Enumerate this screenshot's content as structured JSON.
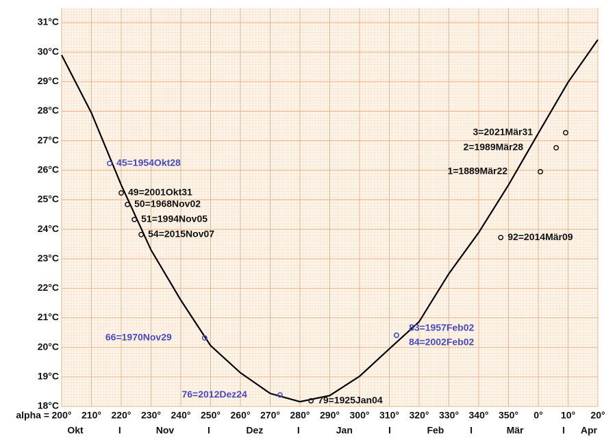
{
  "chart_data": {
    "type": "line",
    "x_label": "alpha =",
    "xlim": [
      200,
      380
    ],
    "ylim": [
      18,
      31.5
    ],
    "xticks": [
      200,
      210,
      220,
      230,
      240,
      250,
      260,
      270,
      280,
      290,
      300,
      310,
      320,
      330,
      340,
      350,
      {
        "value": 360,
        "label": "0°"
      },
      {
        "value": 370,
        "label": "10°"
      },
      {
        "value": 380,
        "label": "20°"
      }
    ],
    "xtick_suffix_labels": [
      "200°",
      "210°",
      "220°",
      "230°",
      "240°",
      "250°",
      "260°",
      "270°",
      "280°",
      "290°",
      "300°",
      "310°",
      "320°",
      "330°",
      "340°",
      "350°"
    ],
    "yticks": [
      {
        "value": 18,
        "label": "18°C"
      },
      {
        "value": 19,
        "label": "19°C"
      },
      {
        "value": 20,
        "label": "20°C"
      },
      {
        "value": 21,
        "label": "21°C"
      },
      {
        "value": 22,
        "label": "22°C"
      },
      {
        "value": 23,
        "label": "23°C"
      },
      {
        "value": 24,
        "label": "24°C"
      },
      {
        "value": 25,
        "label": "25°C"
      },
      {
        "value": 26,
        "label": "26°C"
      },
      {
        "value": 27,
        "label": "27°C"
      },
      {
        "value": 28,
        "label": "28°C"
      },
      {
        "value": 29,
        "label": "29°C"
      },
      {
        "value": 30,
        "label": "30°C"
      },
      {
        "value": 31,
        "label": "31°C"
      }
    ],
    "month_labels": [
      {
        "label": "Okt",
        "x": 204.6
      },
      {
        "label": "I",
        "x": 219.5
      },
      {
        "label": "Nov",
        "x": 234.7
      },
      {
        "label": "I",
        "x": 249.4
      },
      {
        "label": "Dez",
        "x": 264.8
      },
      {
        "label": "I",
        "x": 279.5
      },
      {
        "label": "Jan",
        "x": 294.9
      },
      {
        "label": "I",
        "x": 310.1
      },
      {
        "label": "Feb",
        "x": 325.5
      },
      {
        "label": "I",
        "x": 337.5
      },
      {
        "label": "Mär",
        "x": 352.2
      },
      {
        "label": "I",
        "x": 368.5
      },
      {
        "label": "Apr",
        "x": 377
      }
    ],
    "grid": true,
    "series": [
      {
        "color": "#000000",
        "x": [
          200,
          210,
          220,
          230,
          240,
          250,
          260,
          270,
          280,
          290,
          300,
          310,
          320,
          330,
          340,
          350,
          360,
          370,
          380
        ],
        "values": [
          29.9,
          27.94,
          25.5,
          23.3,
          21.6,
          20.06,
          19.14,
          18.44,
          18.16,
          18.37,
          19.02,
          19.95,
          20.87,
          22.5,
          23.89,
          25.5,
          27.25,
          28.98,
          30.42
        ]
      }
    ],
    "points": [
      {
        "label": "45=1954Okt28",
        "x": 216.1,
        "y": 26.23,
        "color": "#4a4ac0",
        "label_side": "right"
      },
      {
        "label": "49=2001Okt31",
        "x": 220,
        "y": 25.23,
        "color": "#111111",
        "label_side": "right"
      },
      {
        "label": "50=1968Nov02",
        "x": 222.1,
        "y": 24.84,
        "color": "#111111",
        "label_side": "right"
      },
      {
        "label": "51=1994Nov05",
        "x": 224.4,
        "y": 24.33,
        "color": "#111111",
        "label_side": "right"
      },
      {
        "label": "54=2015Nov07",
        "x": 226.7,
        "y": 23.82,
        "color": "#111111",
        "label_side": "right"
      },
      {
        "label": "66=1970Nov29",
        "x": 248,
        "y": 20.32,
        "color": "#4a4ac0",
        "label_side": "left"
      },
      {
        "label": "76=2012Dez24",
        "x": 273.3,
        "y": 18.39,
        "color": "#4a4ac0",
        "label_side": "left"
      },
      {
        "label": "79=1925Jan04",
        "x": 283.7,
        "y": 18.19,
        "color": "#111111",
        "label_side": "right"
      },
      {
        "label": "83=1957Feb02",
        "x": 312.4,
        "y": 20.41,
        "color": "#4a4ac0",
        "label_side": "right-up"
      },
      {
        "label": "84=2002Feb02",
        "x": 312.4,
        "y": 20.41,
        "color": "#4a4ac0",
        "label_side": "right-down"
      },
      {
        "label": "92=2014Mär09",
        "x": 347.4,
        "y": 23.72,
        "color": "#111111",
        "label_side": "right"
      },
      {
        "label": "1=1889Mär22",
        "x": 360.7,
        "y": 25.95,
        "color": "#111111",
        "label_side": "left"
      },
      {
        "label": "2=1989Mär28",
        "x": 366,
        "y": 26.76,
        "color": "#111111",
        "label_side": "left"
      },
      {
        "label": "3=2021Mär31",
        "x": 369.2,
        "y": 27.27,
        "color": "#111111",
        "label_side": "left"
      }
    ]
  }
}
